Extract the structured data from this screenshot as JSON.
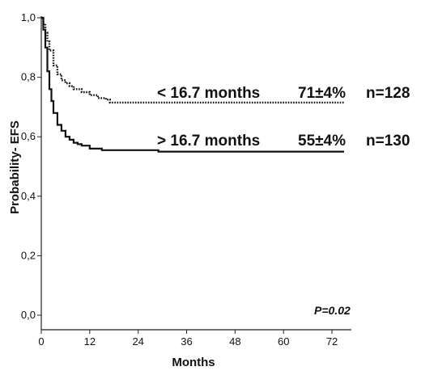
{
  "chart_data": {
    "type": "line",
    "title": "",
    "xlabel": "Months",
    "ylabel": "Probability- EFS",
    "xlim": [
      0,
      76
    ],
    "ylim": [
      0,
      1
    ],
    "x_ticks": [
      0,
      12,
      24,
      36,
      48,
      60,
      72
    ],
    "x_tick_labels": [
      "0",
      "12",
      "24",
      "36",
      "48",
      "60",
      "72"
    ],
    "y_ticks": [
      0,
      0.2,
      0.4,
      0.6,
      0.8,
      1.0
    ],
    "y_tick_labels": [
      "0,0",
      "0,2",
      "0,4",
      "0,6",
      "0,8",
      "1,0"
    ],
    "grid": false,
    "series": [
      {
        "style": "dotted",
        "x": [
          0,
          0.5,
          1,
          1.5,
          2,
          3,
          4,
          5,
          6,
          7,
          8,
          10,
          12,
          14,
          16,
          17,
          20,
          28,
          40,
          60,
          75
        ],
        "y": [
          1.0,
          0.98,
          0.95,
          0.92,
          0.89,
          0.84,
          0.81,
          0.79,
          0.78,
          0.77,
          0.76,
          0.75,
          0.74,
          0.73,
          0.725,
          0.715,
          0.715,
          0.715,
          0.715,
          0.715,
          0.715
        ]
      },
      {
        "style": "solid",
        "x": [
          0,
          0.5,
          1,
          1.5,
          2,
          2.5,
          3,
          4,
          5,
          6,
          7,
          8,
          9,
          10,
          12,
          15,
          20,
          24,
          28,
          29,
          40,
          60,
          75
        ],
        "y": [
          1.0,
          0.96,
          0.9,
          0.82,
          0.76,
          0.72,
          0.68,
          0.64,
          0.62,
          0.6,
          0.59,
          0.58,
          0.575,
          0.57,
          0.56,
          0.555,
          0.555,
          0.555,
          0.555,
          0.55,
          0.55,
          0.55,
          0.55
        ]
      }
    ],
    "annotations": [
      {
        "label": "< 16.7 months",
        "stat": "71±4%",
        "n": "n=128"
      },
      {
        "label": "> 16.7 months",
        "stat": "55±4%",
        "n": "n=130"
      },
      {
        "label": "P=0.02"
      }
    ]
  }
}
